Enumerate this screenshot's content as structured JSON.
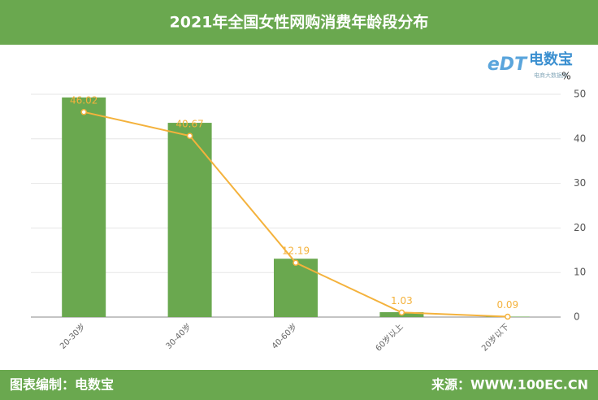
{
  "header": {
    "title": "2021年全国女性网购消费年龄段分布"
  },
  "logo": {
    "mark": "eDT",
    "name": "电数宝",
    "tagline": "电商大数据库"
  },
  "chart_data": {
    "type": "bar",
    "categories": [
      "20-30岁",
      "30-40岁",
      "40-60岁",
      "60岁以上",
      "20岁以下"
    ],
    "y_unit": "%",
    "ylim": [
      0,
      50
    ],
    "yticks": [
      0,
      10,
      20,
      30,
      40,
      50
    ],
    "grid": true,
    "series": [
      {
        "type": "bar",
        "color": "#6aa84f",
        "values": [
          49.3,
          43.6,
          13.1,
          1.1,
          0.1
        ]
      },
      {
        "type": "line",
        "color": "#f4b23c",
        "values": [
          46.02,
          40.67,
          12.19,
          1.03,
          0.09
        ]
      }
    ]
  },
  "footer": {
    "left": "图表编制：电数宝",
    "right": "来源：WWW.100EC.CN"
  }
}
